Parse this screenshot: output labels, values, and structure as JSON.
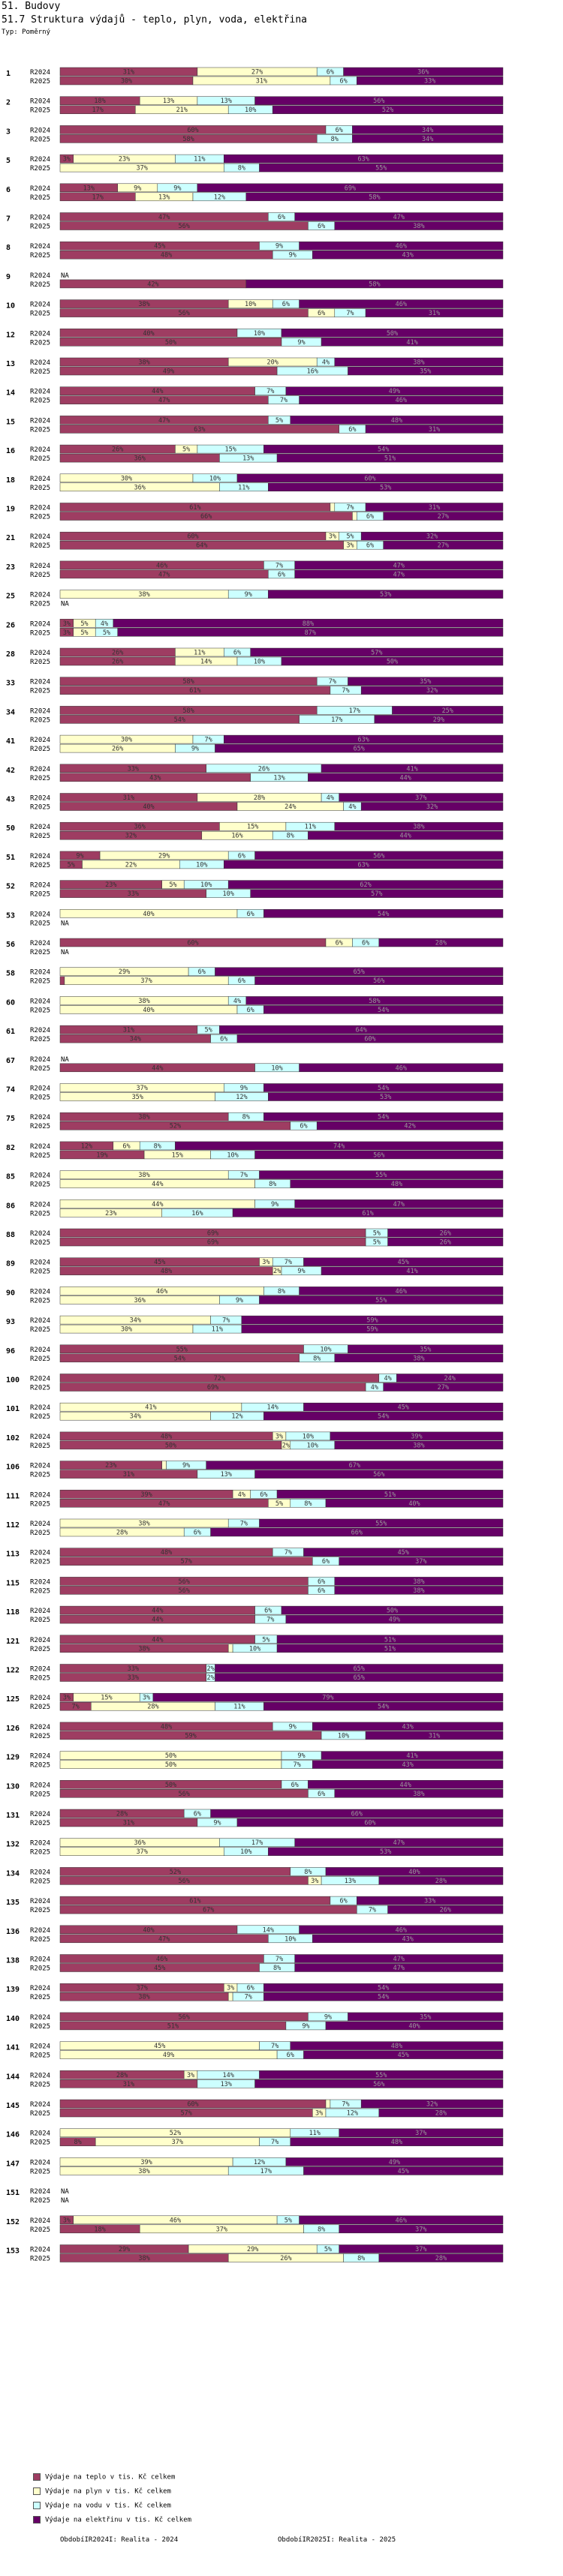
{
  "header": {
    "section": "51. Budovy",
    "title": "51.7 Struktura výdajů - teplo, plyn, voda, elektřina",
    "subtitle": "Typ: Poměrný"
  },
  "colors": {
    "teplo": "#9e3d62",
    "plyn": "#ffffcc",
    "voda": "#ccffff",
    "elektrina": "#660066",
    "border": "#333333"
  },
  "legend": [
    {
      "key": "teplo",
      "label": "Výdaje na teplo v tis. Kč celkem"
    },
    {
      "key": "plyn",
      "label": "Výdaje na plyn v tis. Kč celkem"
    },
    {
      "key": "voda",
      "label": "Výdaje na vodu v tis. Kč celkem"
    },
    {
      "key": "elektrina",
      "label": "Výdaje na elektřinu v tis. Kč celkem"
    }
  ],
  "footer": {
    "left": "ObdobíIR2024I: Realita - 2024",
    "right": "ObdobíIR2025I: Realita - 2025"
  },
  "chart_data": {
    "type": "bar",
    "stacked": true,
    "normalized": true,
    "orientation": "horizontal",
    "unit": "%",
    "series": [
      "teplo",
      "plyn",
      "voda",
      "elektrina"
    ],
    "period_labels": [
      "R2024",
      "R2025"
    ],
    "na_label": "NA",
    "xlim": [
      0,
      100
    ],
    "groups": [
      {
        "id": "1",
        "rows": [
          [
            31,
            27,
            6,
            36
          ],
          [
            30,
            31,
            6,
            33
          ]
        ]
      },
      {
        "id": "2",
        "rows": [
          [
            18,
            13,
            13,
            56
          ],
          [
            17,
            21,
            10,
            52
          ]
        ]
      },
      {
        "id": "3",
        "rows": [
          [
            60,
            0,
            6,
            34
          ],
          [
            58,
            0,
            8,
            34
          ]
        ]
      },
      {
        "id": "5",
        "rows": [
          [
            3,
            23,
            11,
            63
          ],
          [
            0,
            37,
            8,
            55
          ]
        ]
      },
      {
        "id": "6",
        "rows": [
          [
            13,
            9,
            9,
            69
          ],
          [
            17,
            13,
            12,
            58
          ]
        ]
      },
      {
        "id": "7",
        "rows": [
          [
            47,
            0,
            6,
            47
          ],
          [
            56,
            0,
            6,
            38
          ]
        ]
      },
      {
        "id": "8",
        "rows": [
          [
            45,
            0,
            9,
            46
          ],
          [
            48,
            0,
            9,
            43
          ]
        ]
      },
      {
        "id": "9",
        "rows": [
          null,
          [
            42,
            0,
            0,
            58
          ]
        ]
      },
      {
        "id": "10",
        "rows": [
          [
            38,
            10,
            6,
            46
          ],
          [
            56,
            6,
            7,
            31
          ]
        ]
      },
      {
        "id": "12",
        "rows": [
          [
            40,
            0,
            10,
            50
          ],
          [
            50,
            0,
            9,
            41
          ]
        ]
      },
      {
        "id": "13",
        "rows": [
          [
            38,
            20,
            4,
            38
          ],
          [
            49,
            0,
            16,
            35
          ]
        ]
      },
      {
        "id": "14",
        "rows": [
          [
            44,
            0,
            7,
            49
          ],
          [
            47,
            0,
            7,
            46
          ]
        ]
      },
      {
        "id": "15",
        "rows": [
          [
            47,
            0,
            5,
            48
          ],
          [
            63,
            0,
            6,
            31
          ]
        ]
      },
      {
        "id": "16",
        "rows": [
          [
            26,
            5,
            15,
            54
          ],
          [
            36,
            0,
            13,
            51
          ]
        ]
      },
      {
        "id": "18",
        "rows": [
          [
            0,
            30,
            10,
            60
          ],
          [
            0,
            36,
            11,
            53
          ]
        ]
      },
      {
        "id": "19",
        "rows": [
          [
            61,
            1,
            7,
            31
          ],
          [
            66,
            1,
            6,
            27
          ]
        ]
      },
      {
        "id": "21",
        "rows": [
          [
            60,
            3,
            5,
            32
          ],
          [
            64,
            3,
            6,
            27
          ]
        ]
      },
      {
        "id": "23",
        "rows": [
          [
            46,
            0,
            7,
            47
          ],
          [
            47,
            0,
            6,
            47
          ]
        ]
      },
      {
        "id": "25",
        "rows": [
          [
            0,
            38,
            9,
            53
          ],
          null
        ]
      },
      {
        "id": "26",
        "rows": [
          [
            3,
            5,
            4,
            88
          ],
          [
            3,
            5,
            5,
            87
          ]
        ]
      },
      {
        "id": "28",
        "rows": [
          [
            26,
            11,
            6,
            57
          ],
          [
            26,
            14,
            10,
            50
          ]
        ]
      },
      {
        "id": "33",
        "rows": [
          [
            58,
            0,
            7,
            35
          ],
          [
            61,
            0,
            7,
            32
          ]
        ]
      },
      {
        "id": "34",
        "rows": [
          [
            58,
            0,
            17,
            25
          ],
          [
            54,
            0,
            17,
            29
          ]
        ]
      },
      {
        "id": "41",
        "rows": [
          [
            0,
            30,
            7,
            63
          ],
          [
            0,
            26,
            9,
            65
          ]
        ]
      },
      {
        "id": "42",
        "rows": [
          [
            33,
            0,
            26,
            41
          ],
          [
            43,
            0,
            13,
            44
          ]
        ]
      },
      {
        "id": "43",
        "rows": [
          [
            31,
            28,
            4,
            37
          ],
          [
            40,
            24,
            4,
            32
          ]
        ]
      },
      {
        "id": "50",
        "rows": [
          [
            36,
            15,
            11,
            38
          ],
          [
            32,
            16,
            8,
            44
          ]
        ]
      },
      {
        "id": "51",
        "rows": [
          [
            9,
            29,
            6,
            56
          ],
          [
            5,
            22,
            10,
            63
          ]
        ]
      },
      {
        "id": "52",
        "rows": [
          [
            23,
            5,
            10,
            62
          ],
          [
            33,
            0,
            10,
            57
          ]
        ]
      },
      {
        "id": "53",
        "rows": [
          [
            0,
            40,
            6,
            54
          ],
          null
        ]
      },
      {
        "id": "56",
        "rows": [
          [
            60,
            6,
            6,
            28
          ],
          null
        ]
      },
      {
        "id": "58",
        "rows": [
          [
            0,
            29,
            6,
            65
          ],
          [
            1,
            37,
            6,
            56
          ]
        ]
      },
      {
        "id": "60",
        "rows": [
          [
            0,
            38,
            4,
            58
          ],
          [
            0,
            40,
            6,
            54
          ]
        ]
      },
      {
        "id": "61",
        "rows": [
          [
            31,
            0,
            5,
            64
          ],
          [
            34,
            0,
            6,
            60
          ]
        ]
      },
      {
        "id": "67",
        "rows": [
          null,
          [
            44,
            0,
            10,
            46
          ]
        ]
      },
      {
        "id": "74",
        "rows": [
          [
            0,
            37,
            9,
            54
          ],
          [
            0,
            35,
            12,
            53
          ]
        ]
      },
      {
        "id": "75",
        "rows": [
          [
            38,
            0,
            8,
            54
          ],
          [
            52,
            0,
            6,
            42
          ]
        ]
      },
      {
        "id": "82",
        "rows": [
          [
            12,
            6,
            8,
            74
          ],
          [
            19,
            15,
            10,
            56
          ]
        ]
      },
      {
        "id": "85",
        "rows": [
          [
            0,
            38,
            7,
            55
          ],
          [
            0,
            44,
            8,
            48
          ]
        ]
      },
      {
        "id": "86",
        "rows": [
          [
            0,
            44,
            9,
            47
          ],
          [
            0,
            23,
            16,
            61
          ]
        ]
      },
      {
        "id": "88",
        "rows": [
          [
            69,
            0,
            5,
            26
          ],
          [
            69,
            0,
            5,
            26
          ]
        ]
      },
      {
        "id": "89",
        "rows": [
          [
            45,
            3,
            7,
            45
          ],
          [
            48,
            2,
            9,
            41
          ]
        ]
      },
      {
        "id": "90",
        "rows": [
          [
            0,
            46,
            8,
            46
          ],
          [
            0,
            36,
            9,
            55
          ]
        ]
      },
      {
        "id": "93",
        "rows": [
          [
            0,
            34,
            7,
            59
          ],
          [
            0,
            30,
            11,
            59
          ]
        ]
      },
      {
        "id": "96",
        "rows": [
          [
            55,
            0,
            10,
            35
          ],
          [
            54,
            0,
            8,
            38
          ]
        ]
      },
      {
        "id": "100",
        "rows": [
          [
            72,
            0,
            4,
            24
          ],
          [
            69,
            0,
            4,
            27
          ]
        ]
      },
      {
        "id": "101",
        "rows": [
          [
            0,
            41,
            14,
            45
          ],
          [
            0,
            34,
            12,
            54
          ]
        ]
      },
      {
        "id": "102",
        "rows": [
          [
            48,
            3,
            10,
            39
          ],
          [
            50,
            2,
            10,
            38
          ]
        ]
      },
      {
        "id": "106",
        "rows": [
          [
            23,
            1,
            9,
            67
          ],
          [
            31,
            0,
            13,
            56
          ]
        ]
      },
      {
        "id": "111",
        "rows": [
          [
            39,
            4,
            6,
            51
          ],
          [
            47,
            5,
            8,
            40
          ]
        ]
      },
      {
        "id": "112",
        "rows": [
          [
            0,
            38,
            7,
            55
          ],
          [
            0,
            28,
            6,
            66
          ]
        ]
      },
      {
        "id": "113",
        "rows": [
          [
            48,
            0,
            7,
            45
          ],
          [
            57,
            0,
            6,
            37
          ]
        ]
      },
      {
        "id": "115",
        "rows": [
          [
            56,
            0,
            6,
            38
          ],
          [
            56,
            0,
            6,
            38
          ]
        ]
      },
      {
        "id": "118",
        "rows": [
          [
            44,
            0,
            6,
            50
          ],
          [
            44,
            0,
            7,
            49
          ]
        ]
      },
      {
        "id": "121",
        "rows": [
          [
            44,
            0,
            5,
            51
          ],
          [
            38,
            1,
            10,
            51
          ]
        ]
      },
      {
        "id": "122",
        "rows": [
          [
            33,
            0,
            2,
            65
          ],
          [
            33,
            0,
            2,
            65
          ]
        ]
      },
      {
        "id": "125",
        "rows": [
          [
            3,
            15,
            3,
            79
          ],
          [
            7,
            28,
            11,
            54
          ]
        ]
      },
      {
        "id": "126",
        "rows": [
          [
            48,
            0,
            9,
            43
          ],
          [
            59,
            0,
            10,
            31
          ]
        ]
      },
      {
        "id": "129",
        "rows": [
          [
            0,
            50,
            9,
            41
          ],
          [
            0,
            50,
            7,
            43
          ]
        ]
      },
      {
        "id": "130",
        "rows": [
          [
            50,
            0,
            6,
            44
          ],
          [
            56,
            0,
            6,
            38
          ]
        ]
      },
      {
        "id": "131",
        "rows": [
          [
            28,
            0,
            6,
            66
          ],
          [
            31,
            0,
            9,
            60
          ]
        ]
      },
      {
        "id": "132",
        "rows": [
          [
            0,
            36,
            17,
            47
          ],
          [
            0,
            37,
            10,
            53
          ]
        ]
      },
      {
        "id": "134",
        "rows": [
          [
            52,
            0,
            8,
            40
          ],
          [
            56,
            3,
            13,
            28
          ]
        ]
      },
      {
        "id": "135",
        "rows": [
          [
            61,
            0,
            6,
            33
          ],
          [
            67,
            0,
            7,
            26
          ]
        ]
      },
      {
        "id": "136",
        "rows": [
          [
            40,
            0,
            14,
            46
          ],
          [
            47,
            0,
            10,
            43
          ]
        ]
      },
      {
        "id": "138",
        "rows": [
          [
            46,
            0,
            7,
            47
          ],
          [
            45,
            0,
            8,
            47
          ]
        ]
      },
      {
        "id": "139",
        "rows": [
          [
            37,
            3,
            6,
            54
          ],
          [
            38,
            1,
            7,
            54
          ]
        ]
      },
      {
        "id": "140",
        "rows": [
          [
            56,
            0,
            9,
            35
          ],
          [
            51,
            0,
            9,
            40
          ]
        ]
      },
      {
        "id": "141",
        "rows": [
          [
            0,
            45,
            7,
            48
          ],
          [
            0,
            49,
            6,
            45
          ]
        ]
      },
      {
        "id": "144",
        "rows": [
          [
            28,
            3,
            14,
            55
          ],
          [
            31,
            0,
            13,
            56
          ]
        ]
      },
      {
        "id": "145",
        "rows": [
          [
            60,
            1,
            7,
            32
          ],
          [
            57,
            3,
            12,
            28
          ]
        ]
      },
      {
        "id": "146",
        "rows": [
          [
            0,
            52,
            11,
            37
          ],
          [
            8,
            37,
            7,
            48
          ]
        ]
      },
      {
        "id": "147",
        "rows": [
          [
            0,
            39,
            12,
            49
          ],
          [
            0,
            38,
            17,
            45
          ]
        ]
      },
      {
        "id": "151",
        "rows": [
          null,
          null
        ]
      },
      {
        "id": "152",
        "rows": [
          [
            3,
            46,
            5,
            46
          ],
          [
            18,
            37,
            8,
            37
          ]
        ]
      },
      {
        "id": "153",
        "rows": [
          [
            29,
            29,
            5,
            37
          ],
          [
            38,
            26,
            8,
            28
          ]
        ]
      }
    ]
  }
}
